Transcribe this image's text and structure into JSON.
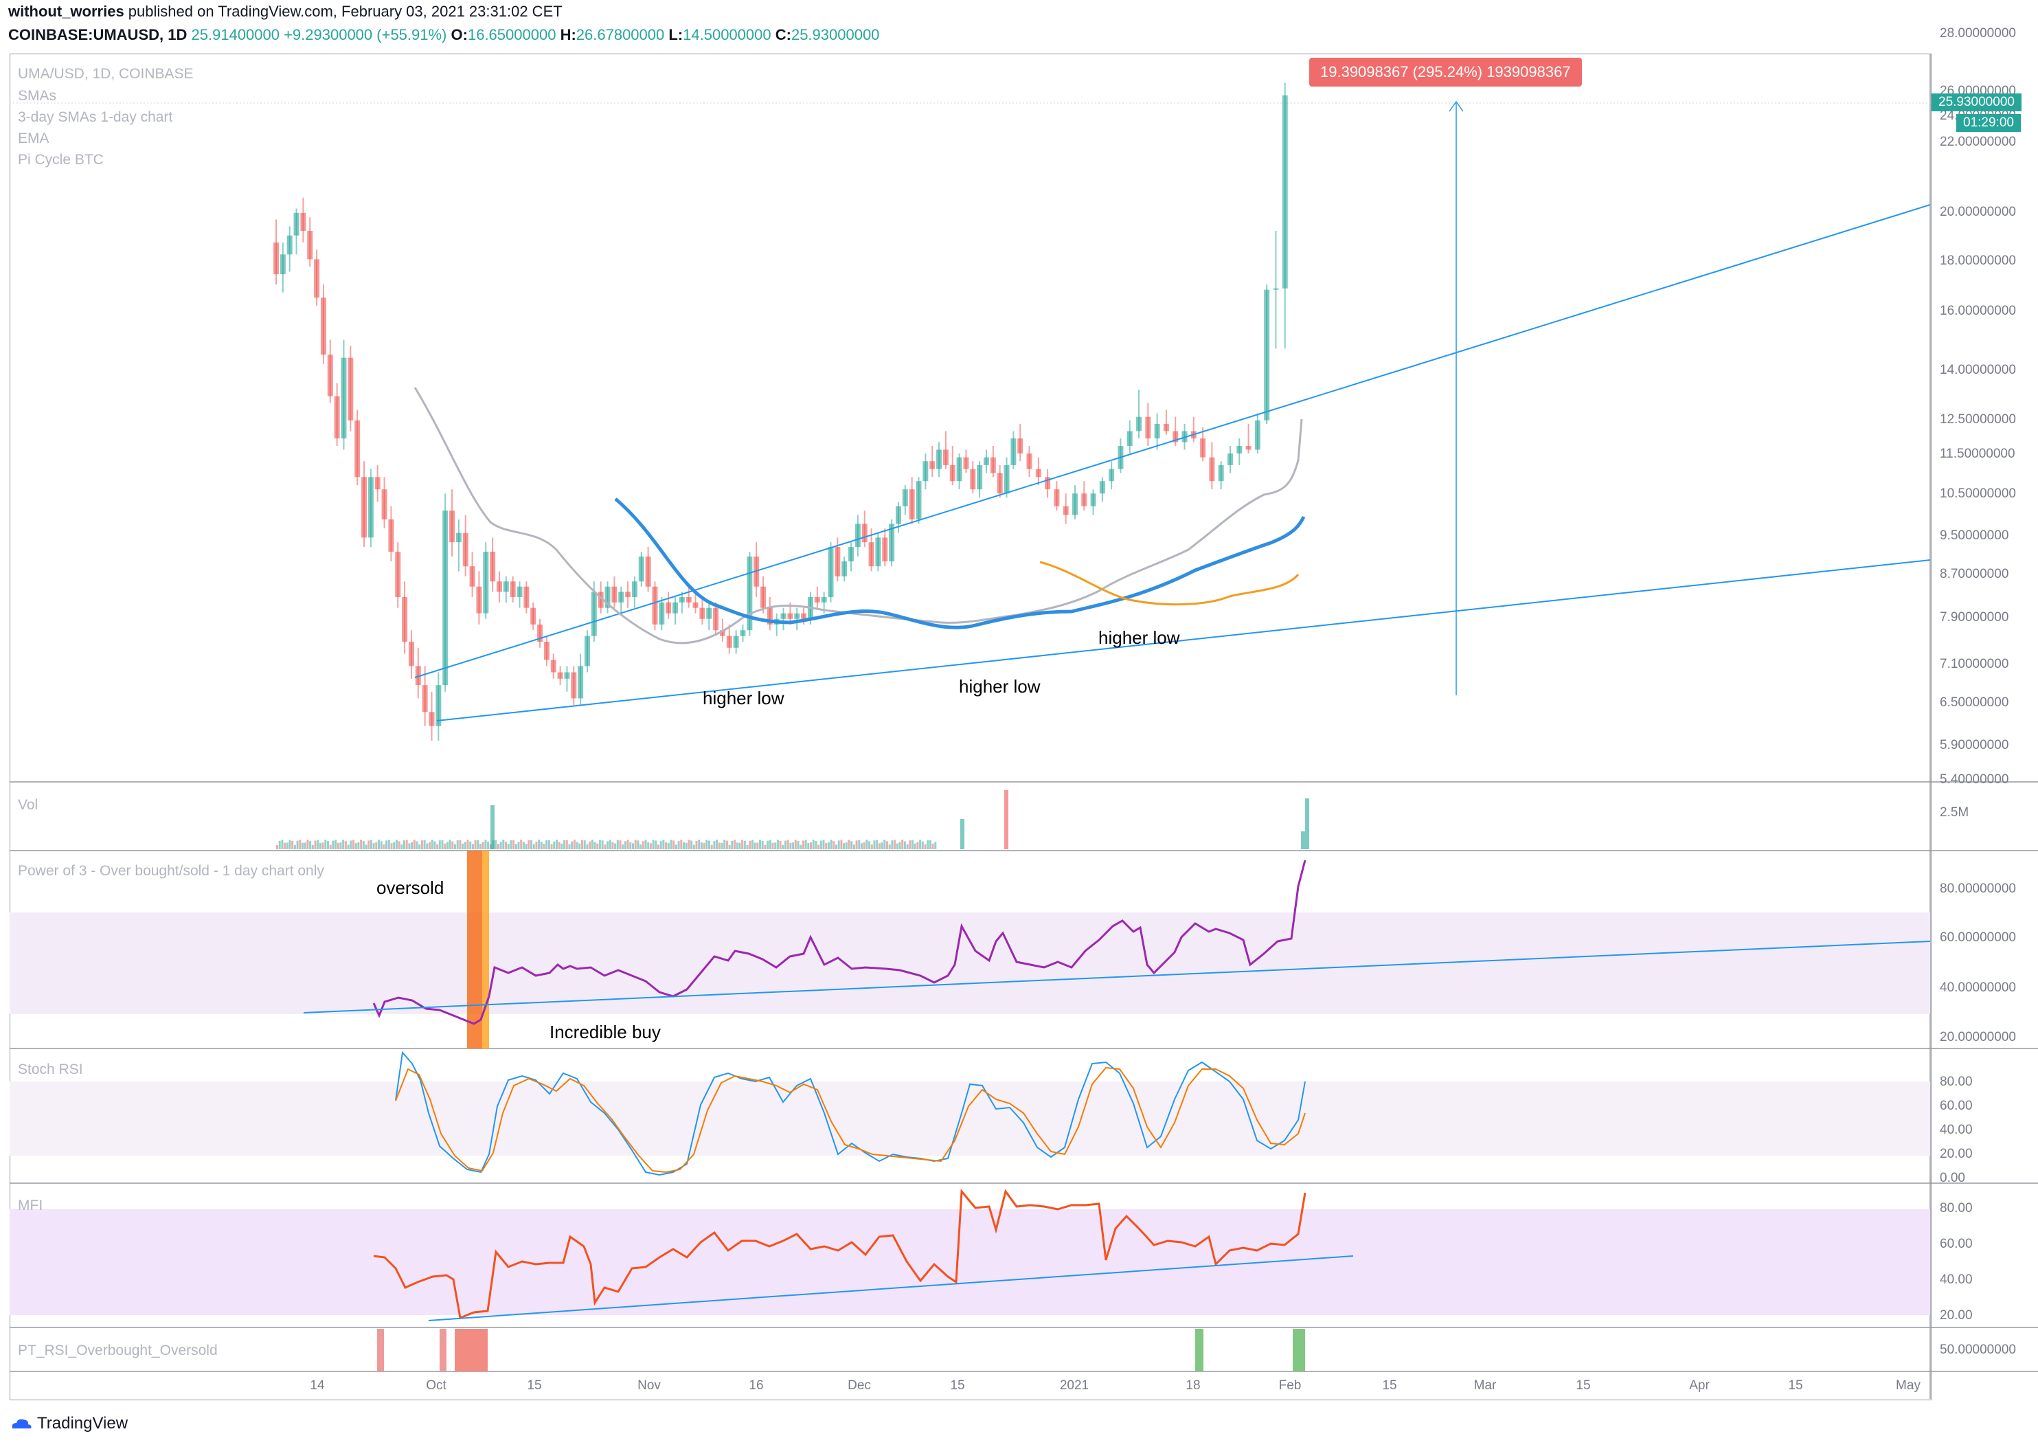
{
  "header": {
    "line1_user": "without_worries",
    "line1_rest": " published on TradingView.com, February 03, 2021 23:31:02 CET",
    "symbol": "COINBASE:UMAUSD, 1D",
    "last": "25.91400000",
    "change": "+9.29300000 (+55.91%)",
    "o_label": "O:",
    "o": "16.65000000",
    "h_label": "H:",
    "h": "26.67800000",
    "l_label": "L:",
    "l": "14.50000000",
    "c_label": "C:",
    "c": "25.93000000"
  },
  "legend": {
    "title": "UMA/USD, 1D, COINBASE",
    "items": [
      "SMAs",
      "3-day SMAs 1-day chart",
      "EMA",
      "Pi Cycle BTC"
    ]
  },
  "price_tags": {
    "last": "25.93000000",
    "countdown": "01:29:00"
  },
  "measure_label": "19.39098367 (295.24%) 1939098367",
  "annotations": {
    "higher_low_1": "higher low",
    "higher_low_2": "higher low",
    "higher_low_3": "higher low",
    "oversold": "oversold",
    "incredible_buy": "Incredible buy"
  },
  "panes": {
    "vol": {
      "label": "Vol",
      "tick": "2.5M"
    },
    "power3": {
      "label": "Power of 3 - Over bought/sold - 1 day chart only",
      "ticks": [
        "80.00000000",
        "60.00000000",
        "40.00000000",
        "20.00000000"
      ]
    },
    "stoch": {
      "label": "Stoch RSI",
      "ticks": [
        "80.00",
        "60.00",
        "40.00",
        "20.00",
        "0.00"
      ]
    },
    "mfi": {
      "label": "MFI",
      "ticks": [
        "80.00",
        "60.00",
        "40.00",
        "20.00"
      ]
    },
    "pt_rsi": {
      "label": "PT_RSI_Overbought_Oversold",
      "tick": "50.00000000"
    }
  },
  "price_axis": [
    "28.00000000",
    "26.00000000",
    "24.00000000",
    "22.00000000",
    "20.00000000",
    "18.00000000",
    "16.00000000",
    "14.00000000",
    "12.50000000",
    "11.50000000",
    "10.50000000",
    "9.50000000",
    "8.70000000",
    "7.90000000",
    "7.10000000",
    "6.50000000",
    "5.90000000",
    "5.40000000"
  ],
  "time_axis": [
    "14",
    "Oct",
    "15",
    "Nov",
    "16",
    "Dec",
    "15",
    "2021",
    "18",
    "Feb",
    "15",
    "Mar",
    "15",
    "Apr",
    "15",
    "May"
  ],
  "brand": "TradingView",
  "colors": {
    "up": "#26a69a",
    "down": "#ef5350",
    "trend": "#2196f3",
    "sma": "#b2b5be",
    "ma_blue": "#2f8ee0",
    "ma_orange": "#f29d1c",
    "power": "#9c27b0",
    "stoch_k": "#2196f3",
    "stoch_d": "#f57c00",
    "mfi": "#f4511e"
  },
  "chart_data": {
    "type": "candlestick",
    "title": "UMA/USD, 1D, COINBASE",
    "y_scale": "log",
    "ylim": [
      5.4,
      28.0
    ],
    "x_range": [
      "2020-09-05",
      "2021-05-05"
    ],
    "candles": [
      [
        "2020-09-05",
        18.5,
        19.5,
        16.8,
        17.2
      ],
      [
        "2020-09-06",
        17.2,
        18.5,
        16.5,
        18.0
      ],
      [
        "2020-09-07",
        18.0,
        19.2,
        17.3,
        18.8
      ],
      [
        "2020-09-08",
        18.8,
        20.0,
        18.0,
        19.8
      ],
      [
        "2020-09-09",
        19.8,
        20.5,
        18.5,
        19.0
      ],
      [
        "2020-09-10",
        19.0,
        19.6,
        17.5,
        17.8
      ],
      [
        "2020-09-11",
        17.8,
        18.2,
        16.0,
        16.3
      ],
      [
        "2020-09-12",
        16.3,
        16.8,
        14.0,
        14.3
      ],
      [
        "2020-09-13",
        14.3,
        14.8,
        12.8,
        13.0
      ],
      [
        "2020-09-14",
        13.0,
        13.4,
        11.6,
        11.8
      ],
      [
        "2020-09-15",
        11.8,
        14.8,
        11.5,
        14.2
      ],
      [
        "2020-09-16",
        14.2,
        14.6,
        12.0,
        12.3
      ],
      [
        "2020-09-17",
        12.3,
        12.6,
        10.6,
        10.8
      ],
      [
        "2020-09-18",
        10.8,
        11.2,
        9.2,
        9.4
      ],
      [
        "2020-09-19",
        9.4,
        11.0,
        9.2,
        10.8
      ],
      [
        "2020-09-20",
        10.8,
        11.1,
        10.2,
        10.5
      ],
      [
        "2020-09-21",
        10.5,
        10.8,
        9.6,
        9.8
      ],
      [
        "2020-09-22",
        9.8,
        10.1,
        8.9,
        9.1
      ],
      [
        "2020-09-23",
        9.1,
        9.3,
        8.0,
        8.2
      ],
      [
        "2020-09-24",
        8.2,
        8.5,
        7.2,
        7.4
      ],
      [
        "2020-09-25",
        7.4,
        7.6,
        6.8,
        7.0
      ],
      [
        "2020-09-26",
        7.0,
        7.3,
        6.5,
        6.7
      ],
      [
        "2020-09-27",
        6.7,
        7.0,
        6.1,
        6.3
      ],
      [
        "2020-09-28",
        6.3,
        6.6,
        5.9,
        6.1
      ],
      [
        "2020-09-29",
        6.1,
        6.9,
        5.9,
        6.7
      ],
      [
        "2020-09-30",
        6.7,
        10.4,
        6.6,
        10.0
      ],
      [
        "2020-10-01",
        10.0,
        10.5,
        9.0,
        9.3
      ],
      [
        "2020-10-02",
        9.3,
        9.8,
        8.7,
        9.5
      ],
      [
        "2020-10-03",
        9.5,
        9.9,
        8.6,
        8.8
      ],
      [
        "2020-10-04",
        8.8,
        9.1,
        8.2,
        8.4
      ],
      [
        "2020-10-05",
        8.4,
        8.7,
        7.7,
        7.9
      ],
      [
        "2020-10-06",
        7.9,
        9.3,
        7.8,
        9.1
      ],
      [
        "2020-10-07",
        9.1,
        9.4,
        8.3,
        8.5
      ],
      [
        "2020-10-08",
        8.5,
        8.7,
        8.1,
        8.3
      ],
      [
        "2020-10-09",
        8.3,
        8.6,
        8.1,
        8.5
      ],
      [
        "2020-10-10",
        8.5,
        8.6,
        8.1,
        8.2
      ],
      [
        "2020-10-11",
        8.2,
        8.5,
        8.0,
        8.4
      ],
      [
        "2020-10-12",
        8.4,
        8.5,
        7.9,
        8.0
      ],
      [
        "2020-10-13",
        8.0,
        8.1,
        7.6,
        7.7
      ],
      [
        "2020-10-14",
        7.7,
        7.8,
        7.3,
        7.4
      ],
      [
        "2020-10-15",
        7.4,
        7.5,
        7.0,
        7.1
      ],
      [
        "2020-10-16",
        7.1,
        7.2,
        6.8,
        6.9
      ],
      [
        "2020-10-17",
        6.9,
        7.0,
        6.7,
        6.8
      ],
      [
        "2020-10-18",
        6.8,
        7.0,
        6.6,
        6.9
      ],
      [
        "2020-10-19",
        6.9,
        7.0,
        6.4,
        6.5
      ],
      [
        "2020-10-20",
        6.5,
        7.2,
        6.4,
        7.0
      ],
      [
        "2020-10-21",
        7.0,
        7.6,
        6.9,
        7.5
      ],
      [
        "2020-10-22",
        7.5,
        8.5,
        7.4,
        8.3
      ],
      [
        "2020-10-23",
        8.3,
        8.5,
        7.9,
        8.0
      ],
      [
        "2020-10-24",
        8.0,
        8.5,
        7.9,
        8.4
      ],
      [
        "2020-10-25",
        8.4,
        8.6,
        8.0,
        8.1
      ],
      [
        "2020-10-26",
        8.1,
        8.4,
        7.9,
        8.3
      ],
      [
        "2020-10-27",
        8.3,
        8.5,
        8.0,
        8.2
      ],
      [
        "2020-10-28",
        8.2,
        8.6,
        8.0,
        8.5
      ],
      [
        "2020-10-29",
        8.5,
        9.1,
        8.4,
        9.0
      ],
      [
        "2020-10-30",
        9.0,
        9.2,
        8.3,
        8.4
      ],
      [
        "2020-10-31",
        8.4,
        8.5,
        7.6,
        7.7
      ],
      [
        "2020-11-01",
        7.7,
        8.2,
        7.6,
        8.1
      ],
      [
        "2020-11-02",
        8.1,
        8.3,
        7.8,
        7.9
      ],
      [
        "2020-11-03",
        7.9,
        8.2,
        7.7,
        8.1
      ],
      [
        "2020-11-04",
        8.1,
        8.3,
        7.9,
        8.2
      ],
      [
        "2020-11-05",
        8.2,
        8.4,
        8.0,
        8.1
      ],
      [
        "2020-11-06",
        8.1,
        8.3,
        7.9,
        8.0
      ],
      [
        "2020-11-07",
        8.0,
        8.2,
        7.7,
        7.8
      ],
      [
        "2020-11-08",
        7.8,
        8.1,
        7.6,
        8.0
      ],
      [
        "2020-11-09",
        8.0,
        8.1,
        7.5,
        7.6
      ],
      [
        "2020-11-10",
        7.6,
        7.8,
        7.4,
        7.5
      ],
      [
        "2020-11-11",
        7.5,
        7.7,
        7.2,
        7.3
      ],
      [
        "2020-11-12",
        7.3,
        7.6,
        7.2,
        7.5
      ],
      [
        "2020-11-13",
        7.5,
        7.7,
        7.4,
        7.6
      ],
      [
        "2020-11-14",
        7.6,
        9.1,
        7.5,
        9.0
      ],
      [
        "2020-11-15",
        9.0,
        9.3,
        8.2,
        8.4
      ],
      [
        "2020-11-16",
        8.4,
        8.6,
        7.9,
        8.0
      ],
      [
        "2020-11-17",
        8.0,
        8.2,
        7.6,
        7.7
      ],
      [
        "2020-11-18",
        7.7,
        7.9,
        7.5,
        7.8
      ],
      [
        "2020-11-19",
        7.8,
        8.0,
        7.6,
        7.9
      ],
      [
        "2020-11-20",
        7.9,
        8.1,
        7.7,
        7.8
      ],
      [
        "2020-11-21",
        7.8,
        8.0,
        7.6,
        7.9
      ],
      [
        "2020-11-22",
        7.9,
        8.0,
        7.7,
        7.8
      ],
      [
        "2020-11-23",
        7.8,
        8.3,
        7.7,
        8.2
      ],
      [
        "2020-11-24",
        8.2,
        8.4,
        8.0,
        8.1
      ],
      [
        "2020-11-25",
        8.1,
        8.3,
        7.9,
        8.2
      ],
      [
        "2020-11-26",
        8.2,
        9.3,
        8.1,
        9.2
      ],
      [
        "2020-11-27",
        9.2,
        9.4,
        8.5,
        8.6
      ],
      [
        "2020-11-28",
        8.6,
        9.0,
        8.5,
        8.9
      ],
      [
        "2020-11-29",
        8.9,
        9.3,
        8.7,
        9.2
      ],
      [
        "2020-11-30",
        9.2,
        9.9,
        9.0,
        9.7
      ],
      [
        "2020-12-01",
        9.7,
        10.0,
        9.2,
        9.3
      ],
      [
        "2020-12-02",
        9.3,
        9.6,
        8.7,
        8.8
      ],
      [
        "2020-12-03",
        8.8,
        9.5,
        8.7,
        9.4
      ],
      [
        "2020-12-04",
        9.4,
        9.6,
        8.8,
        8.9
      ],
      [
        "2020-12-05",
        8.9,
        9.8,
        8.8,
        9.7
      ],
      [
        "2020-12-06",
        9.7,
        10.2,
        9.5,
        10.1
      ],
      [
        "2020-12-07",
        10.1,
        10.6,
        9.9,
        10.5
      ],
      [
        "2020-12-08",
        10.5,
        10.8,
        9.7,
        9.8
      ],
      [
        "2020-12-09",
        9.8,
        10.8,
        9.7,
        10.7
      ],
      [
        "2020-12-10",
        10.7,
        11.4,
        10.5,
        11.2
      ],
      [
        "2020-12-11",
        11.2,
        11.6,
        10.8,
        11.0
      ],
      [
        "2020-12-12",
        11.0,
        11.7,
        10.8,
        11.5
      ],
      [
        "2020-12-13",
        11.5,
        12.0,
        11.0,
        11.1
      ],
      [
        "2020-12-14",
        11.1,
        11.6,
        10.6,
        10.7
      ],
      [
        "2020-12-15",
        10.7,
        11.4,
        10.5,
        11.3
      ],
      [
        "2020-12-16",
        11.3,
        11.5,
        10.9,
        11.0
      ],
      [
        "2020-12-17",
        11.0,
        11.2,
        10.4,
        10.5
      ],
      [
        "2020-12-18",
        10.5,
        11.2,
        10.3,
        11.1
      ],
      [
        "2020-12-19",
        11.1,
        11.5,
        10.9,
        11.3
      ],
      [
        "2020-12-20",
        11.3,
        11.6,
        10.8,
        10.9
      ],
      [
        "2020-12-21",
        10.9,
        11.1,
        10.3,
        10.4
      ],
      [
        "2020-12-22",
        10.4,
        11.3,
        10.3,
        11.1
      ],
      [
        "2020-12-23",
        11.1,
        12.0,
        11.0,
        11.8
      ]
    ],
    "note_price_scale": "shown on log scale",
    "trendlines": {
      "rising_resistance": [
        [
          "2020-09-20",
          6.9
        ],
        [
          "2021-05-05",
          20.5
        ]
      ],
      "rising_support_price": [
        [
          "2020-09-25",
          6.2
        ],
        [
          "2021-05-05",
          9.0
        ]
      ]
    },
    "last_price": 25.93
  }
}
